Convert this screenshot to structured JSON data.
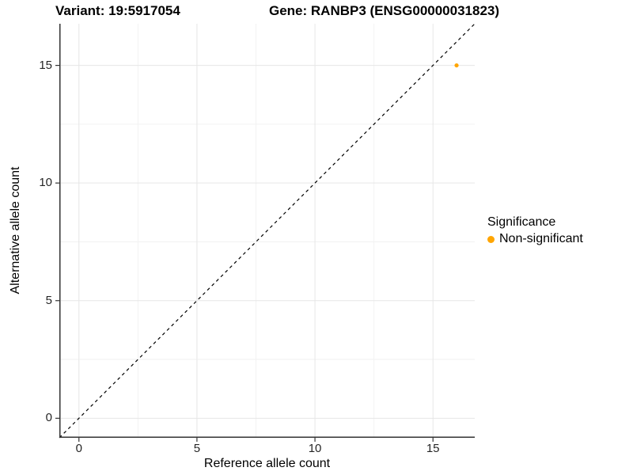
{
  "titles": {
    "variant": "Variant: 19:5917054",
    "gene": "Gene: RANBP3 (ENSG00000031823)"
  },
  "chart_data": {
    "type": "scatter",
    "title_left": "Variant: 19:5917054",
    "title_right": "Gene: RANBP3 (ENSG00000031823)",
    "xlabel": "Reference allele count",
    "ylabel": "Alternative allele count",
    "xlim": [
      -0.83,
      16.77
    ],
    "ylim": [
      -0.83,
      16.77
    ],
    "x_ticks": [
      0,
      5,
      10,
      15
    ],
    "y_ticks": [
      0,
      5,
      10,
      15
    ],
    "x_minor_ticks": [
      2.5,
      7.5,
      12.5
    ],
    "y_minor_ticks": [
      2.5,
      7.5,
      12.5
    ],
    "grid": "major+minor",
    "identity_line": {
      "style": "dashed",
      "color": "#000000",
      "equation": "y = x"
    },
    "series": [
      {
        "name": "Non-significant",
        "color": "#FFA500",
        "points": [
          {
            "x": 16,
            "y": 15
          }
        ]
      }
    ],
    "legend": {
      "title": "Significance",
      "position": "right",
      "items": [
        {
          "label": "Non-significant",
          "color": "#FFA500"
        }
      ]
    }
  }
}
